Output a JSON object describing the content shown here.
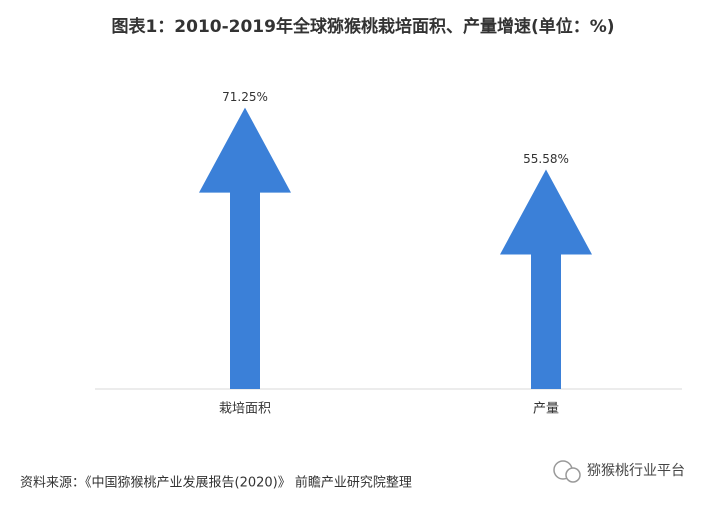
{
  "chart_data": {
    "type": "arrow-bar",
    "title": "图表1：2010-2019年全球猕猴桃栽培面积、产量增速(单位：%)",
    "categories": [
      "栽培面积",
      "产量"
    ],
    "values": [
      71.25,
      55.58
    ],
    "value_labels": [
      "71.25%",
      "55.58%"
    ],
    "color": "#3b80d8",
    "source": "资料来源：《中国猕猴桃产业发展报告(2020)》 前瞻产业研究院整理",
    "watermark": "猕猴桃行业平台"
  }
}
